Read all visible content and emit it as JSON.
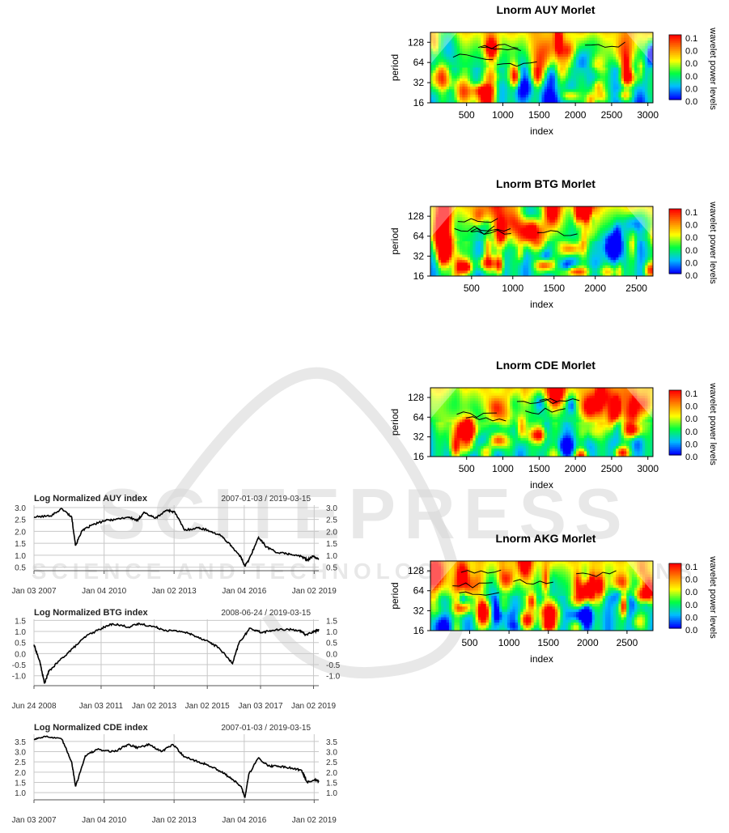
{
  "watermark": {
    "top": "SCITEPRESS",
    "bottom": "SCIENCE AND TECHNOLOGY PUBLICATIONS"
  },
  "chart_data": [
    {
      "type": "heatmap",
      "title": "Lnorm AUY Morlet",
      "xlabel": "index",
      "ylabel": "period",
      "x_ticks": [
        "500",
        "1000",
        "1500",
        "2000",
        "2500",
        "3000"
      ],
      "y_ticks": [
        "128",
        "64",
        "32",
        "16"
      ],
      "xlim": [
        1,
        3070
      ],
      "ylim": [
        16,
        180
      ],
      "legend_title": "wavelet power levels",
      "legend_labels": [
        "0.1",
        "0.0",
        "0.0",
        "0.0",
        "0.0",
        "0.0"
      ],
      "colors": [
        "#0000ff",
        "#00bfff",
        "#00ff40",
        "#ffff00",
        "#ff8000",
        "#ff0000"
      ],
      "seed": 11
    },
    {
      "type": "heatmap",
      "title": "Lnorm BTG Morlet",
      "xlabel": "index",
      "ylabel": "period",
      "x_ticks": [
        "500",
        "1000",
        "1500",
        "2000",
        "2500"
      ],
      "y_ticks": [
        "128",
        "64",
        "32",
        "16"
      ],
      "xlim": [
        1,
        2700
      ],
      "ylim": [
        16,
        180
      ],
      "legend_title": "wavelet power levels",
      "legend_labels": [
        "0.1",
        "0.0",
        "0.0",
        "0.0",
        "0.0",
        "0.0"
      ],
      "colors": [
        "#0000ff",
        "#00bfff",
        "#00ff40",
        "#ffff00",
        "#ff8000",
        "#ff0000"
      ],
      "seed": 23
    },
    {
      "type": "heatmap",
      "title": "Lnorm CDE Morlet",
      "xlabel": "index",
      "ylabel": "period",
      "x_ticks": [
        "500",
        "1000",
        "1500",
        "2000",
        "2500",
        "3000"
      ],
      "y_ticks": [
        "128",
        "64",
        "32",
        "16"
      ],
      "xlim": [
        1,
        3070
      ],
      "ylim": [
        16,
        180
      ],
      "legend_title": "wavelet power levels",
      "legend_labels": [
        "0.1",
        "0.0",
        "0.0",
        "0.0",
        "0.0",
        "0.0"
      ],
      "colors": [
        "#0000ff",
        "#00bfff",
        "#00ff40",
        "#ffff00",
        "#ff8000",
        "#ff0000"
      ],
      "seed": 37
    },
    {
      "type": "heatmap",
      "title": "Lnorm AKG Morlet",
      "xlabel": "index",
      "ylabel": "period",
      "x_ticks": [
        "500",
        "1000",
        "1500",
        "2000",
        "2500"
      ],
      "y_ticks": [
        "128",
        "64",
        "32",
        "16"
      ],
      "xlim": [
        1,
        2830
      ],
      "ylim": [
        16,
        180
      ],
      "legend_title": "wavelet power levels",
      "legend_labels": [
        "0.1",
        "0.0",
        "0.0",
        "0.0",
        "0.0",
        "0.0"
      ],
      "colors": [
        "#0000ff",
        "#00bfff",
        "#00ff40",
        "#ffff00",
        "#ff8000",
        "#ff0000"
      ],
      "seed": 51
    },
    {
      "type": "line",
      "title": "Log Normalized AUY index",
      "date_range": "2007-01-03 / 2019-03-15",
      "x_ticks": [
        "Jan 03 2007",
        "Jan 04 2010",
        "Jan 02 2013",
        "Jan 04 2016",
        "Jan 02 2019"
      ],
      "y_ticks": [
        3.0,
        2.5,
        2.0,
        1.5,
        1.0,
        0.5
      ],
      "ylim": [
        0.35,
        3.1
      ],
      "x": [
        "2007-01-03",
        "2007-09",
        "2008-03",
        "2008-08",
        "2008-10",
        "2009-01",
        "2009-06",
        "2010-01",
        "2010-06",
        "2011-01",
        "2011-06",
        "2011-09",
        "2012-03",
        "2012-09",
        "2013-01",
        "2013-06",
        "2014-01",
        "2014-06",
        "2015-01",
        "2015-06",
        "2015-11",
        "2016-01",
        "2016-03",
        "2016-08",
        "2016-12",
        "2017-06",
        "2017-12",
        "2018-06",
        "2018-09",
        "2018-12",
        "2019-03-15"
      ],
      "values": [
        2.6,
        2.65,
        2.95,
        2.6,
        1.4,
        2.0,
        2.25,
        2.45,
        2.5,
        2.6,
        2.45,
        2.8,
        2.55,
        2.9,
        2.8,
        2.05,
        2.15,
        2.05,
        1.8,
        1.4,
        0.9,
        0.55,
        0.8,
        1.75,
        1.35,
        1.1,
        1.05,
        0.95,
        0.8,
        0.95,
        0.85
      ]
    },
    {
      "type": "line",
      "title": "Log Normalized BTG index",
      "date_range": "2008-06-24 / 2019-03-15",
      "x_ticks": [
        "Jun 24 2008",
        "Jan 03 2011",
        "Jan 02 2013",
        "Jan 02 2015",
        "Jan 03 2017",
        "Jan 02 2019"
      ],
      "y_ticks": [
        1.5,
        1.0,
        0.5,
        0.0,
        -0.5,
        -1.0
      ],
      "ylim": [
        -1.45,
        1.55
      ],
      "x": [
        "2008-06-24",
        "2008-09",
        "2008-11",
        "2009-01",
        "2009-06",
        "2009-12",
        "2010-06",
        "2011-01",
        "2011-06",
        "2012-01",
        "2012-06",
        "2013-01",
        "2013-06",
        "2014-01",
        "2014-06",
        "2015-01",
        "2015-06",
        "2015-12",
        "2016-03",
        "2016-08",
        "2017-01",
        "2017-06",
        "2018-01",
        "2018-06",
        "2018-09",
        "2019-01",
        "2019-03-15"
      ],
      "values": [
        0.4,
        -0.4,
        -1.35,
        -0.8,
        -0.3,
        0.25,
        0.8,
        1.15,
        1.35,
        1.2,
        1.35,
        1.2,
        1.05,
        1.0,
        0.85,
        0.55,
        0.25,
        -0.45,
        0.5,
        1.15,
        0.95,
        1.05,
        1.1,
        1.05,
        0.85,
        1.0,
        1.1
      ]
    },
    {
      "type": "line",
      "title": "Log Normalized CDE index",
      "date_range": "2007-01-03 / 2019-03-15",
      "x_ticks": [
        "Jan 03 2007",
        "Jan 04 2010",
        "Jan 02 2013",
        "Jan 04 2016",
        "Jan 02 2019"
      ],
      "y_ticks": [
        3.5,
        3.0,
        2.5,
        2.0,
        1.5,
        1.0
      ],
      "ylim": [
        0.65,
        3.85
      ],
      "x": [
        "2007-01-03",
        "2007-06",
        "2008-03",
        "2008-08",
        "2008-10",
        "2009-03",
        "2009-09",
        "2010-06",
        "2011-01",
        "2011-06",
        "2011-12",
        "2012-06",
        "2012-12",
        "2013-06",
        "2014-01",
        "2014-06",
        "2015-01",
        "2015-06",
        "2015-11",
        "2016-01",
        "2016-03",
        "2016-08",
        "2017-01",
        "2017-06",
        "2018-01",
        "2018-06",
        "2018-09",
        "2019-01",
        "2019-03-15"
      ],
      "values": [
        3.6,
        3.75,
        3.6,
        2.5,
        1.3,
        2.8,
        3.1,
        3.0,
        3.35,
        3.2,
        3.35,
        3.0,
        3.35,
        2.75,
        2.5,
        2.35,
        2.0,
        1.7,
        1.3,
        0.75,
        1.9,
        2.7,
        2.3,
        2.3,
        2.2,
        2.1,
        1.5,
        1.65,
        1.55
      ]
    }
  ]
}
